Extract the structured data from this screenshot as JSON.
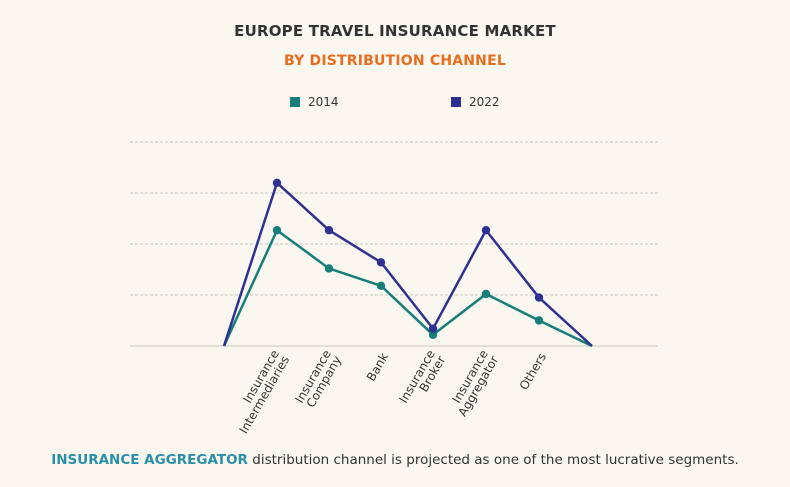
{
  "header": {
    "title": "EUROPE TRAVEL INSURANCE MARKET",
    "subtitle": "BY DISTRIBUTION CHANNEL",
    "subtitle_color": "#e96d1f"
  },
  "footer": {
    "highlight": "INSURANCE AGGREGATOR",
    "highlight_color": "#2a8fa8",
    "text": " distribution channel is projected as one of the most lucrative segments."
  },
  "chart_data": {
    "type": "line",
    "title": "EUROPE TRAVEL INSURANCE MARKET",
    "subtitle": "BY DISTRIBUTION CHANNEL",
    "x_labels": [
      [
        "Insurance",
        "Intermediaries"
      ],
      [
        "Insurance",
        "Company"
      ],
      [
        "Bank"
      ],
      [
        "Insurance",
        "Broker"
      ],
      [
        "Insurance",
        "Aggregator"
      ],
      [
        "Others"
      ]
    ],
    "ylim": [
      0,
      4
    ],
    "grid": true,
    "legend_position": "top",
    "series": [
      {
        "name": "2014",
        "color": "#177d78",
        "values": [
          0,
          2.27,
          1.52,
          1.18,
          0.22,
          1.02,
          0.5,
          0
        ]
      },
      {
        "name": "2022",
        "color": "#2e3191",
        "values": [
          0,
          3.2,
          2.27,
          1.64,
          0.34,
          2.27,
          0.95,
          0
        ]
      }
    ]
  }
}
